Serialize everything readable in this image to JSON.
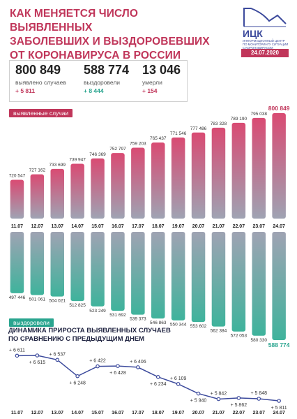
{
  "header": {
    "title_lines": [
      "КАК МЕНЯЕТСЯ ЧИСЛО ВЫЯВЛЕННЫХ",
      "ЗАБОЛЕВШИХ И ВЫЗДОРОВЕВШИХ",
      "ОТ КОРОНАВИРУСА В РОССИИ"
    ],
    "logo_name": "ИЦК",
    "logo_subtitle": "ИНФОРМАЦИОННЫЙ ЦЕНТР ПО МОНИТОРИНГУ СИТУАЦИИ С КОРОНАВИРУСОМ",
    "date": "24.07.2020"
  },
  "stats": {
    "cases": {
      "value": "800 849",
      "label": "выявлено случаев",
      "delta": "+ 5 811"
    },
    "recovered": {
      "value": "588 774",
      "label": "выздоровели",
      "delta": "+ 8 444"
    },
    "deaths": {
      "value": "13 046",
      "label": "умерли",
      "delta": "+ 154"
    }
  },
  "tags": {
    "cases": "выявленные случаи",
    "recovered": "выздоровели"
  },
  "line_section_title": [
    "ДИНАМИКА ПРИРОСТА ВЫЯВЛЕННЫХ СЛУЧАЕВ",
    "ПО СРАВНЕНИЮ С ПРЕДЫДУЩИМ ДНЕМ"
  ],
  "colors": {
    "pink": "#c0365a",
    "green": "#2aa58f",
    "bar_top": "#d94b73",
    "bar_mid": "#9a9fb1",
    "bar_bottom": "#3fb39c",
    "line": "#3c4a9c"
  },
  "chart_data": [
    {
      "type": "bar",
      "categories": [
        "11.07",
        "12.07",
        "13.07",
        "14.07",
        "15.07",
        "16.07",
        "17.07",
        "18.07",
        "19.07",
        "20.07",
        "21.07",
        "22.07",
        "23.07",
        "24.07"
      ],
      "series": [
        {
          "name": "выявленные случаи",
          "values": [
            720547,
            727162,
            733699,
            739947,
            746369,
            752797,
            759203,
            765437,
            771546,
            777486,
            783328,
            789190,
            795038,
            800849
          ]
        }
      ],
      "labels": [
        "720 547",
        "727 162",
        "733 699",
        "739 947",
        "746 369",
        "752 797",
        "759 203",
        "765 437",
        "771 546",
        "777 486",
        "783 328",
        "789 190",
        "795 038",
        "800 849"
      ]
    },
    {
      "type": "bar",
      "categories": [
        "11.07",
        "12.07",
        "13.07",
        "14.07",
        "15.07",
        "16.07",
        "17.07",
        "18.07",
        "19.07",
        "20.07",
        "21.07",
        "22.07",
        "23.07",
        "24.07"
      ],
      "series": [
        {
          "name": "выздоровели",
          "values": [
            497446,
            501061,
            504021,
            512825,
            523249,
            531692,
            539373,
            546863,
            550344,
            553602,
            562384,
            572053,
            580330,
            588774
          ]
        }
      ],
      "labels": [
        "497 446",
        "501 061",
        "504 021",
        "512 825",
        "523 249",
        "531 692",
        "539 373",
        "546 863",
        "550 344",
        "553 602",
        "562 384",
        "572 053",
        "580 330",
        "588 774"
      ]
    },
    {
      "type": "line",
      "categories": [
        "11.07",
        "12.07",
        "13.07",
        "14.07",
        "15.07",
        "16.07",
        "17.07",
        "18.07",
        "19.07",
        "20.07",
        "21.07",
        "22.07",
        "23.07",
        "24.07"
      ],
      "series": [
        {
          "name": "",
          "values": [
            6611,
            6615,
            6537,
            6248,
            6422,
            6428,
            6406,
            6234,
            6109,
            5940,
            5842,
            5862,
            5848,
            5811
          ]
        }
      ],
      "labels": [
        "+ 6 611",
        "+ 6 615",
        "+ 6 537",
        "+ 6 248",
        "+ 6 422",
        "+ 6 428",
        "+ 6 406",
        "+ 6 234",
        "+ 6 109",
        "+ 5 940",
        "+ 5 842",
        "+ 5 862",
        "+ 5 848",
        "+ 5 811"
      ]
    }
  ]
}
